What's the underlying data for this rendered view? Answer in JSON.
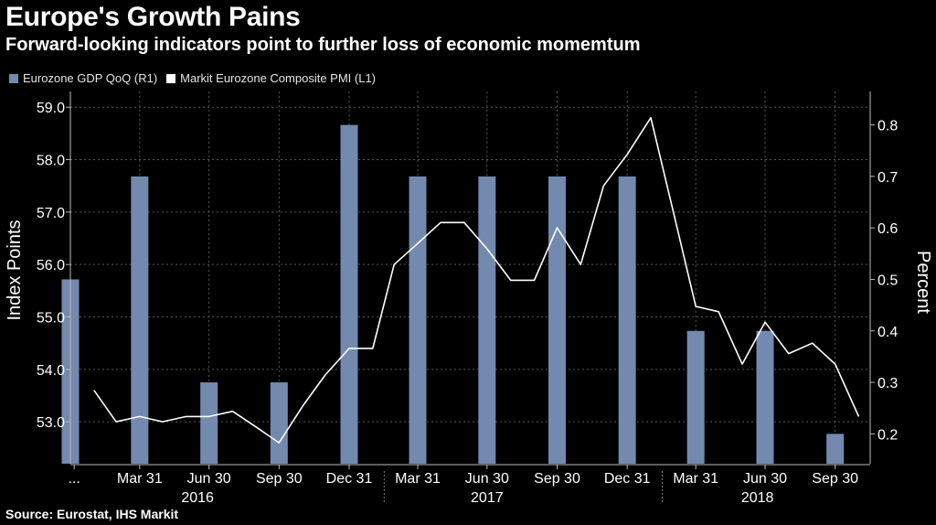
{
  "header": {
    "title": "Europe's Growth Pains",
    "subtitle": "Forward-looking indicators point to further loss of economic momemtum"
  },
  "footer": {
    "source": "Source: Eurostat, IHS Markit"
  },
  "colors": {
    "background": "#000000",
    "bar": "#7389ad",
    "line": "#ffffff",
    "grid": "#555555",
    "text": "#ffffff"
  },
  "chart_data": {
    "type": "bar+line",
    "legend": [
      {
        "name": "Eurozone GDP QoQ (R1)",
        "color": "#7389ad"
      },
      {
        "name": "Markit Eurozone Composite PMI (L1)",
        "color": "#ffffff"
      }
    ],
    "legend_position": "top-left",
    "grid": true,
    "left_axis": {
      "label": "Index Points",
      "ticks": [
        53.0,
        54.0,
        55.0,
        56.0,
        57.0,
        58.0,
        59.0
      ],
      "tick_labels": [
        "53.0",
        "54.0",
        "55.0",
        "56.0",
        "57.0",
        "58.0",
        "59.0"
      ],
      "range": [
        52.2,
        59.3
      ]
    },
    "right_axis": {
      "label": "Percent",
      "ticks": [
        0.2,
        0.3,
        0.4,
        0.5,
        0.6,
        0.7,
        0.8
      ],
      "tick_labels": [
        "0.2",
        "0.3",
        "0.4",
        "0.5",
        "0.6",
        "0.7",
        "0.8"
      ],
      "range": [
        0.142,
        0.865
      ]
    },
    "x_axis": {
      "range": [
        "2015-12-31",
        "2018-11-15"
      ],
      "tick_labels": [
        {
          "label": "...",
          "date": "2016-01-05"
        },
        {
          "label": "Mar 31",
          "date": "2016-03-31"
        },
        {
          "label": "Jun 30",
          "date": "2016-06-30"
        },
        {
          "label": "Sep 30",
          "date": "2016-09-30"
        },
        {
          "label": "Dec 31",
          "date": "2016-12-31"
        },
        {
          "label": "Mar 31",
          "date": "2017-03-31"
        },
        {
          "label": "Jun 30",
          "date": "2017-06-30"
        },
        {
          "label": "Sep 30",
          "date": "2017-09-30"
        },
        {
          "label": "Dec 31",
          "date": "2017-12-31"
        },
        {
          "label": "Mar 31",
          "date": "2018-03-31"
        },
        {
          "label": "Jun 30",
          "date": "2018-06-30"
        },
        {
          "label": "Sep 30",
          "date": "2018-09-30"
        }
      ],
      "year_labels": [
        {
          "label": "2016",
          "date": "2016-06-15"
        },
        {
          "label": "2017",
          "date": "2017-06-30"
        },
        {
          "label": "2018",
          "date": "2018-06-20"
        }
      ],
      "year_separators": [
        "2017-02-15",
        "2018-02-15"
      ]
    },
    "series": [
      {
        "name": "Eurozone GDP QoQ (R1)",
        "type": "bar",
        "axis": "right",
        "x": [
          "2015-12-31",
          "2016-03-31",
          "2016-06-30",
          "2016-09-30",
          "2016-12-31",
          "2017-03-31",
          "2017-06-30",
          "2017-09-30",
          "2017-12-31",
          "2018-03-31",
          "2018-06-30",
          "2018-09-30"
        ],
        "values": [
          0.5,
          0.7,
          0.3,
          0.3,
          0.8,
          0.7,
          0.7,
          0.7,
          0.7,
          0.4,
          0.4,
          0.2
        ]
      },
      {
        "name": "Markit Eurozone Composite PMI (L1)",
        "type": "line",
        "axis": "left",
        "x": [
          "2016-01-31",
          "2016-02-29",
          "2016-03-31",
          "2016-04-30",
          "2016-05-31",
          "2016-06-30",
          "2016-07-31",
          "2016-08-31",
          "2016-09-30",
          "2016-10-31",
          "2016-11-30",
          "2016-12-31",
          "2017-01-31",
          "2017-02-28",
          "2017-03-31",
          "2017-04-30",
          "2017-05-31",
          "2017-06-30",
          "2017-07-31",
          "2017-08-31",
          "2017-09-30",
          "2017-10-31",
          "2017-11-30",
          "2017-12-31",
          "2018-01-31",
          "2018-02-28",
          "2018-03-31",
          "2018-04-30",
          "2018-05-31",
          "2018-06-30",
          "2018-07-31",
          "2018-08-31",
          "2018-09-30",
          "2018-10-31"
        ],
        "values": [
          53.6,
          53.0,
          53.1,
          53.0,
          53.1,
          53.1,
          53.2,
          52.9,
          52.6,
          53.3,
          53.9,
          54.4,
          54.4,
          56.0,
          56.4,
          56.8,
          56.8,
          56.3,
          55.7,
          55.7,
          56.7,
          56.0,
          57.5,
          58.1,
          58.8,
          57.1,
          55.2,
          55.1,
          54.1,
          54.9,
          54.3,
          54.5,
          54.1,
          53.1
        ]
      }
    ]
  }
}
